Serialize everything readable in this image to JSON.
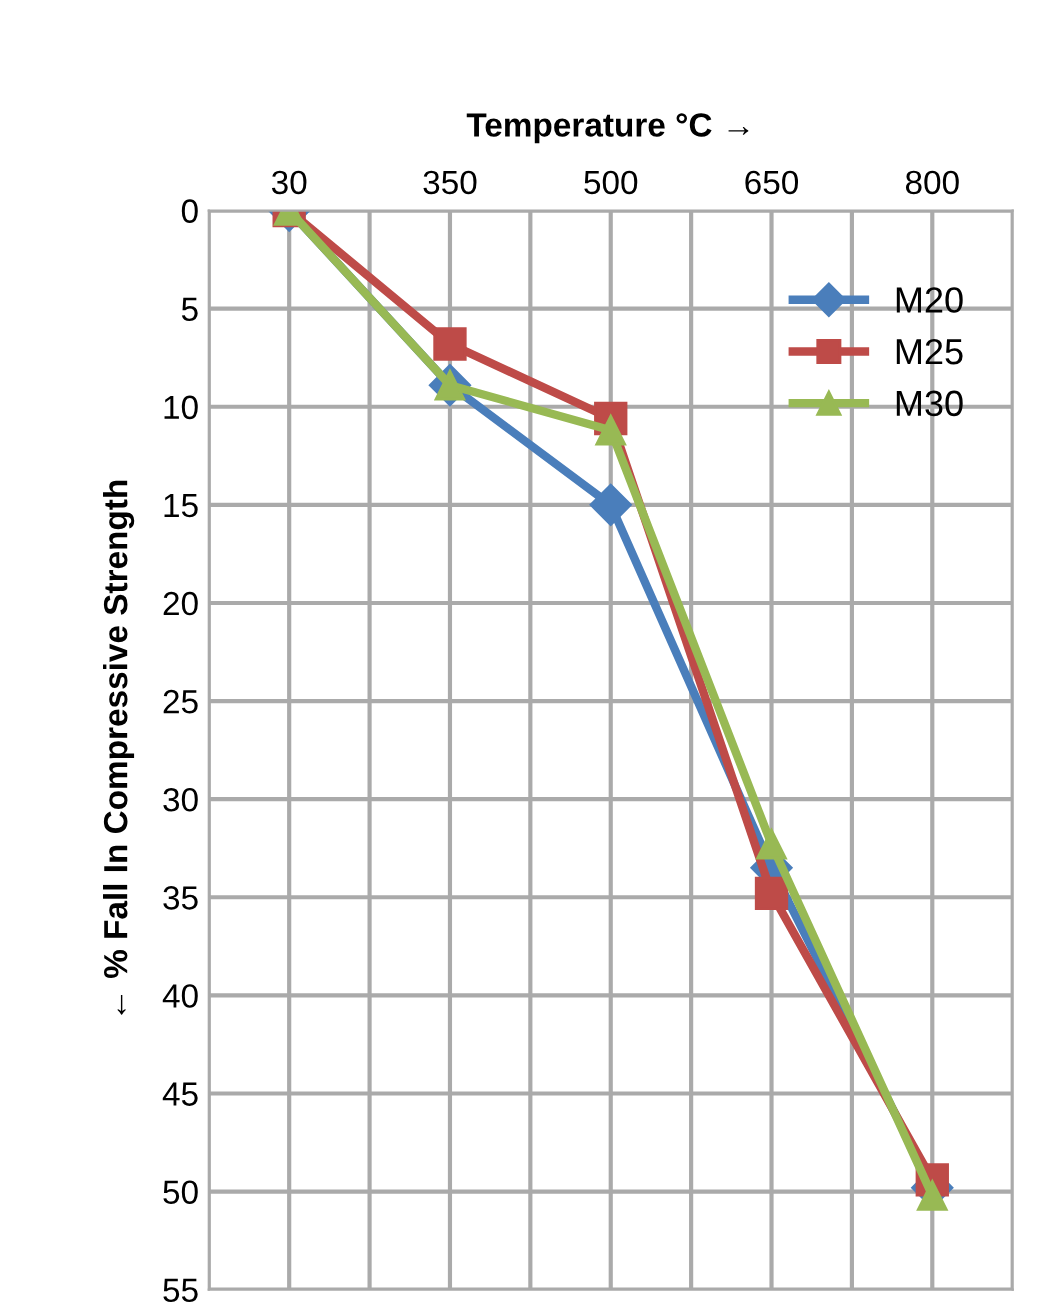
{
  "chart_data": {
    "type": "line",
    "xlabel": "Temperature °C →",
    "ylabel": "← % Fall In Compressive Strength",
    "categories": [
      "30",
      "350",
      "500",
      "650",
      "800"
    ],
    "ylim": [
      55,
      0
    ],
    "yticks": [
      0,
      5,
      10,
      15,
      20,
      25,
      30,
      35,
      40,
      45,
      50,
      55
    ],
    "grid": true,
    "legend": "top right",
    "line_style": "solid",
    "series": [
      {
        "name": "M20",
        "color": "#4a7ebb",
        "marker": "diamond",
        "values": [
          0,
          8.9,
          15.0,
          33.5,
          49.8
        ]
      },
      {
        "name": "M25",
        "color": "#be4b48",
        "marker": "square",
        "values": [
          0,
          6.8,
          10.6,
          34.8,
          49.4
        ]
      },
      {
        "name": "M30",
        "color": "#98b954",
        "marker": "triangle",
        "values": [
          0,
          8.9,
          11.2,
          32.3,
          50.2
        ]
      }
    ]
  }
}
